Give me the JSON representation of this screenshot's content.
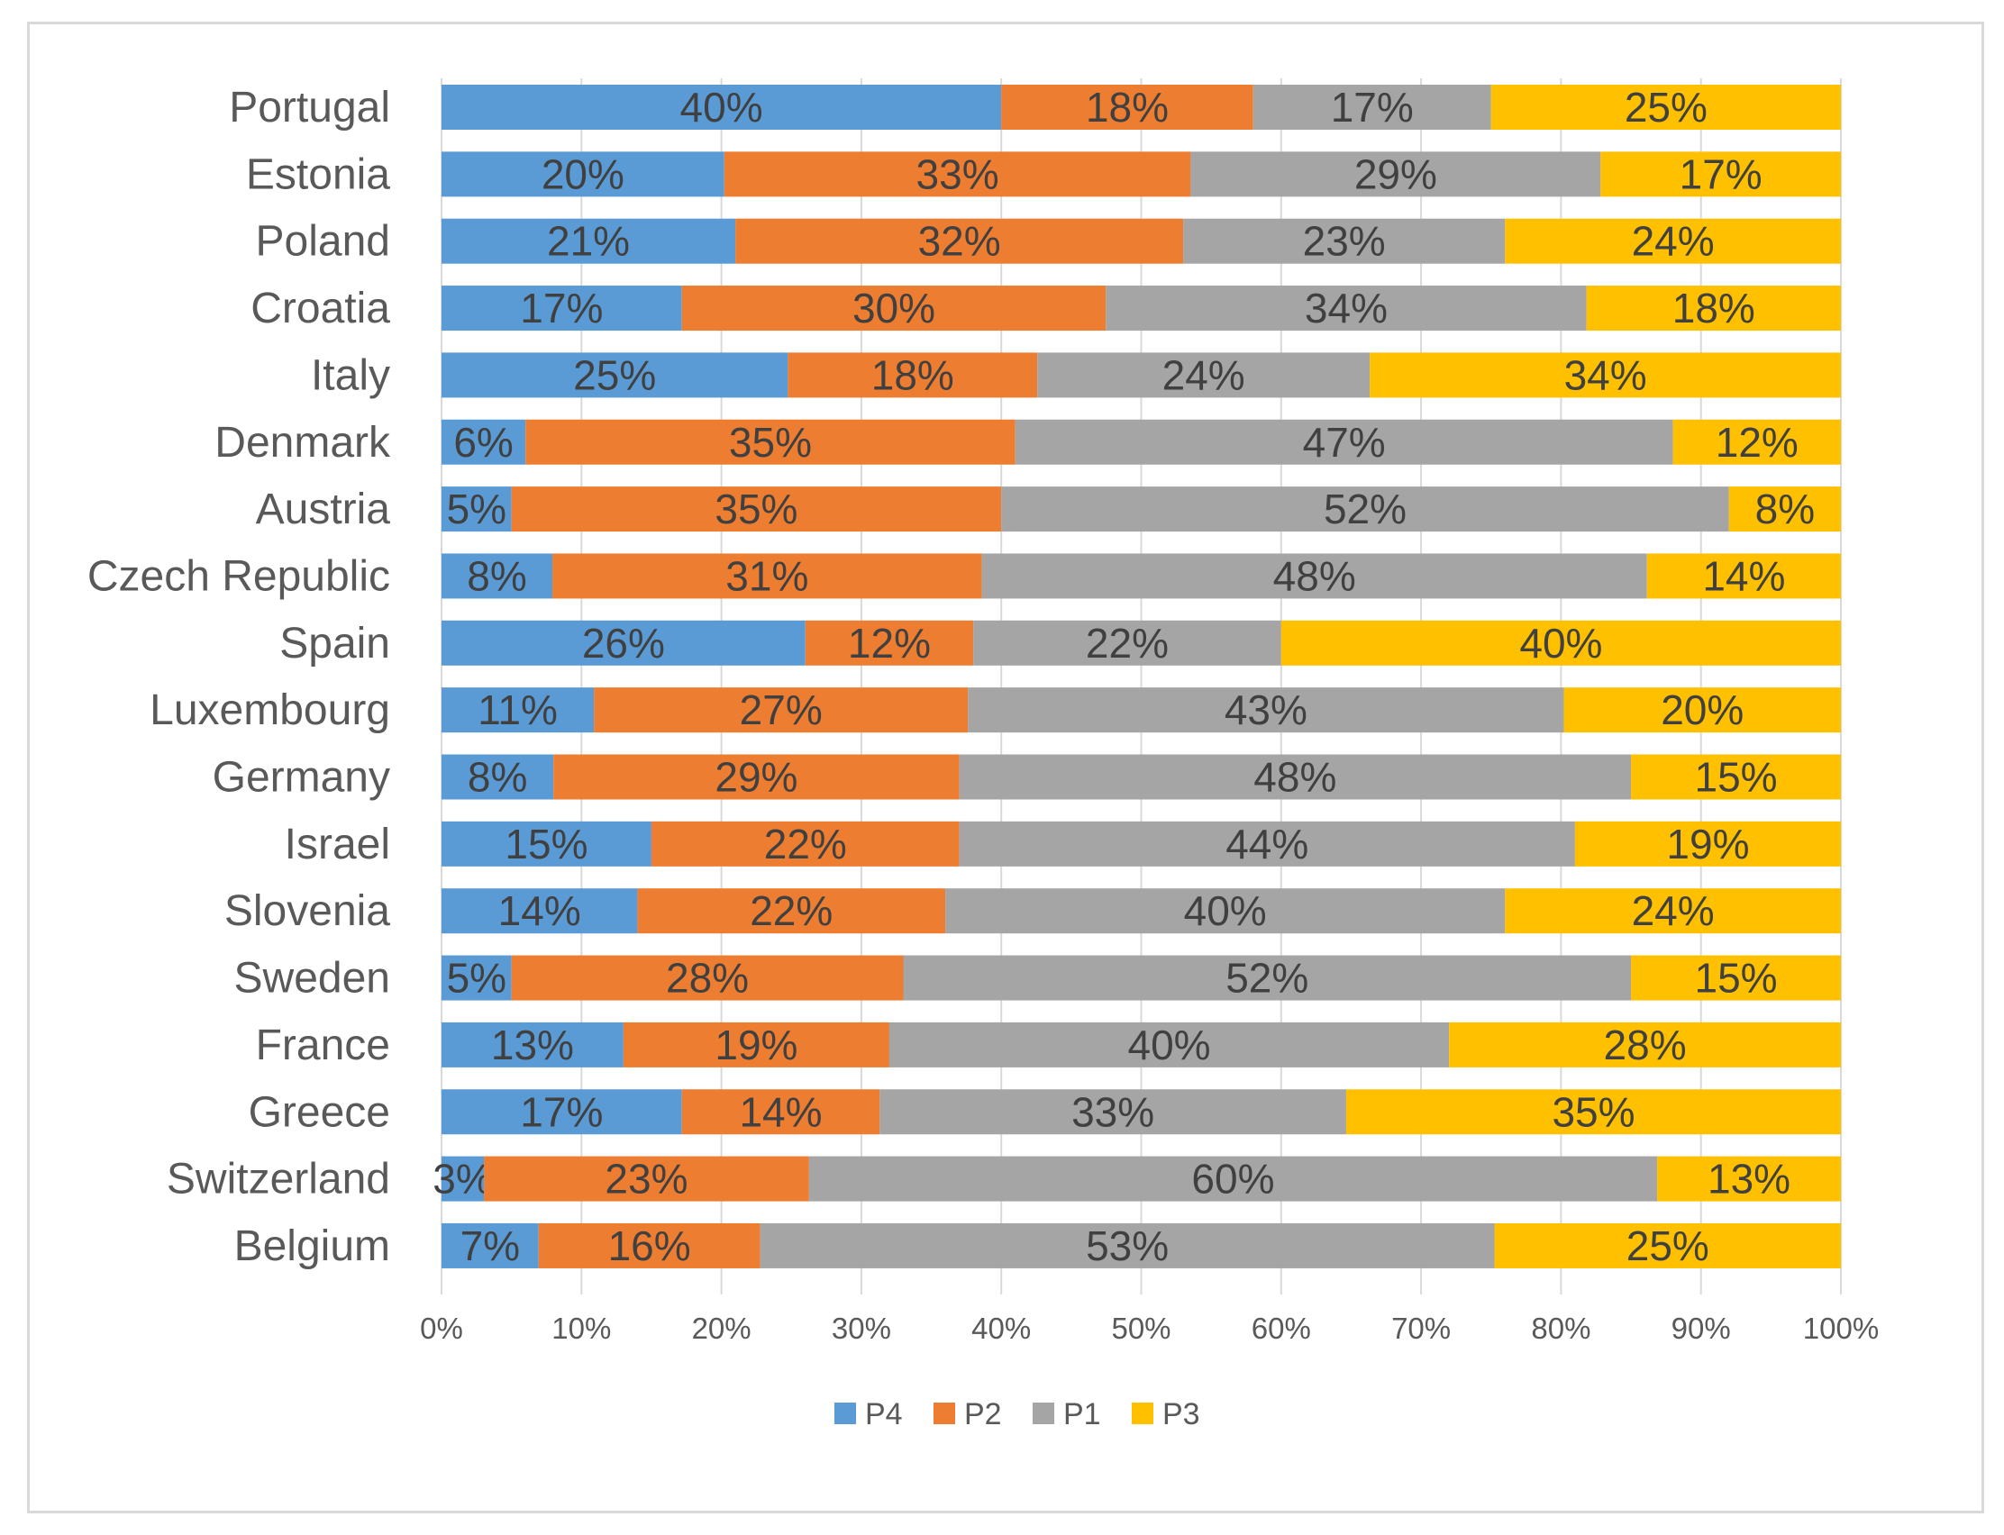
{
  "chart_data": {
    "type": "bar",
    "orientation": "horizontal",
    "stacked": "percent",
    "categories": [
      "Portugal",
      "Estonia",
      "Poland",
      "Croatia",
      "Italy",
      "Denmark",
      "Austria",
      "Czech Republic",
      "Spain",
      "Luxembourg",
      "Germany",
      "Israel",
      "Slovenia",
      "Sweden",
      "France",
      "Greece",
      "Switzerland",
      "Belgium"
    ],
    "series": [
      {
        "name": "P4",
        "color": "#5b9bd5",
        "values": [
          40,
          20,
          21,
          17,
          25,
          6,
          5,
          8,
          26,
          11,
          8,
          15,
          14,
          5,
          13,
          17,
          3,
          7
        ]
      },
      {
        "name": "P2",
        "color": "#ed7d31",
        "values": [
          18,
          33,
          32,
          30,
          18,
          35,
          35,
          31,
          12,
          27,
          29,
          22,
          22,
          28,
          19,
          14,
          23,
          16
        ]
      },
      {
        "name": "P1",
        "color": "#a5a5a5",
        "values": [
          17,
          29,
          23,
          34,
          24,
          47,
          52,
          48,
          22,
          43,
          48,
          44,
          40,
          52,
          40,
          33,
          60,
          53
        ]
      },
      {
        "name": "P3",
        "color": "#ffc000",
        "values": [
          25,
          17,
          24,
          18,
          34,
          12,
          8,
          14,
          40,
          20,
          15,
          19,
          24,
          15,
          28,
          35,
          13,
          25
        ]
      }
    ],
    "x_ticks": [
      "0%",
      "10%",
      "20%",
      "30%",
      "40%",
      "50%",
      "60%",
      "70%",
      "80%",
      "90%",
      "100%"
    ],
    "xlim": [
      0,
      100
    ],
    "title": "",
    "xlabel": "",
    "ylabel": "",
    "grid": true,
    "legend_position": "bottom"
  }
}
